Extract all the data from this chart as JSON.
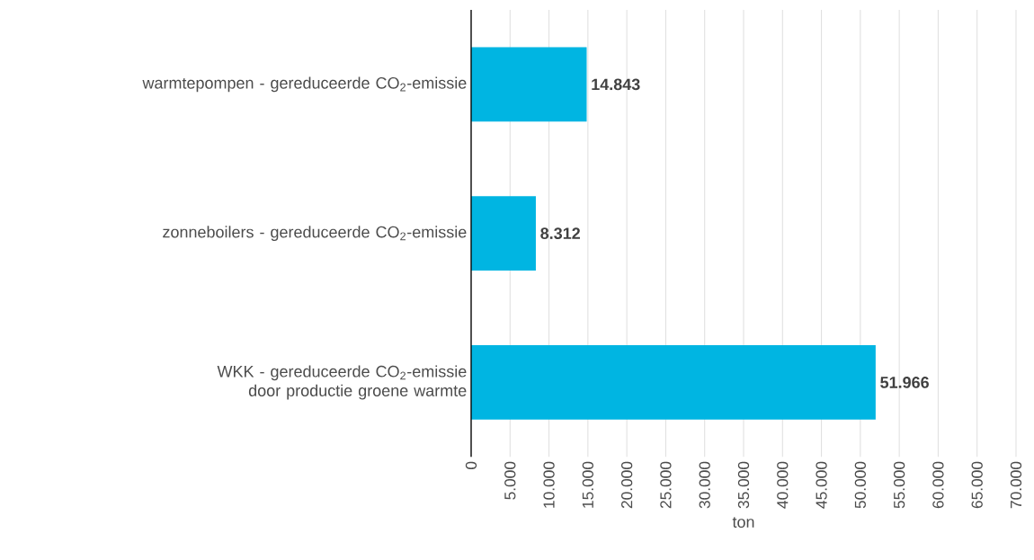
{
  "chart_data": {
    "type": "bar",
    "orientation": "horizontal",
    "xlabel": "ton",
    "categories": [
      "warmtepompen - gereduceerde CO$_{2}$-emissie",
      "zonneboilers - gereduceerde CO$_{2}$-emissie",
      "WKK - gereduceerde CO$_{2}$-emissie door productie groene warmte"
    ],
    "values": [
      14843,
      8312,
      51966
    ],
    "value_labels": [
      "14.843",
      "8.312",
      "51.966"
    ],
    "color": "#00b5e2",
    "xlim": [
      0,
      70000
    ],
    "xticks": [
      0,
      {
        "value": 5000,
        "label": "5.000"
      },
      {
        "value": 10000,
        "label": "10.000"
      },
      {
        "value": 15000,
        "label": "15.000"
      },
      {
        "value": 20000,
        "label": "20.000"
      },
      {
        "value": 25000,
        "label": "25.000"
      },
      {
        "value": 30000,
        "label": "30.000"
      },
      {
        "value": 35000,
        "label": "35.000"
      },
      {
        "value": 40000,
        "label": "40.000"
      },
      {
        "value": 45000,
        "label": "45.000"
      },
      {
        "value": 50000,
        "label": "50.000"
      },
      {
        "value": 55000,
        "label": "55.000"
      },
      {
        "value": 60000,
        "label": "60.000"
      },
      {
        "value": 65000,
        "label": "65.000"
      },
      {
        "value": 70000,
        "label": "70.000"
      }
    ],
    "grid": "x"
  }
}
